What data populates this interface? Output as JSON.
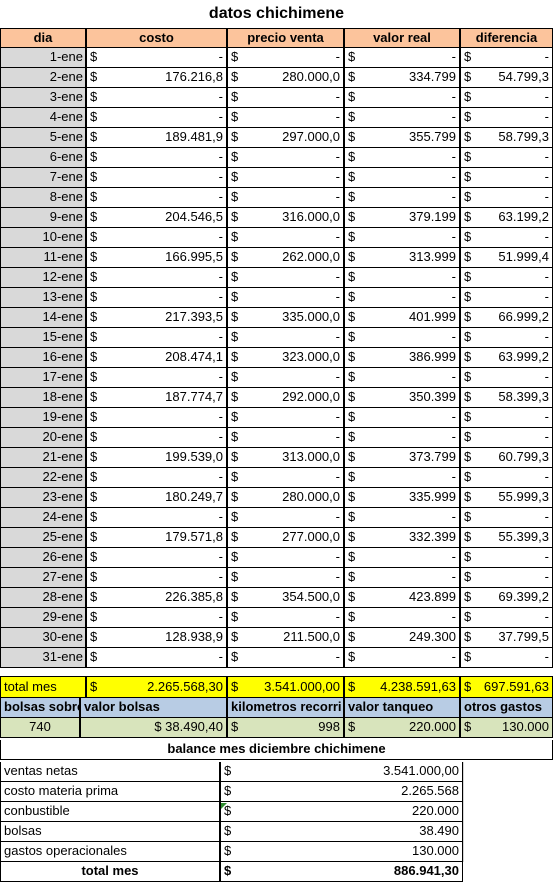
{
  "sheet_title": "datos chichimene",
  "headers": {
    "dia": "dia",
    "costo": "costo",
    "precio_venta": "precio venta",
    "valor_real": "valor real",
    "diferencia": "diferencia"
  },
  "currency_symbol": "$",
  "empty_value": "-",
  "rows": [
    {
      "dia": "1-ene",
      "costo": "-",
      "precio": "-",
      "real": "-",
      "dif": "-"
    },
    {
      "dia": "2-ene",
      "costo": "176.216,8",
      "precio": "280.000,0",
      "real": "334.799",
      "dif": "54.799,3"
    },
    {
      "dia": "3-ene",
      "costo": "-",
      "precio": "-",
      "real": "-",
      "dif": "-"
    },
    {
      "dia": "4-ene",
      "costo": "-",
      "precio": "-",
      "real": "-",
      "dif": "-"
    },
    {
      "dia": "5-ene",
      "costo": "189.481,9",
      "precio": "297.000,0",
      "real": "355.799",
      "dif": "58.799,3"
    },
    {
      "dia": "6-ene",
      "costo": "-",
      "precio": "-",
      "real": "-",
      "dif": "-"
    },
    {
      "dia": "7-ene",
      "costo": "-",
      "precio": "-",
      "real": "-",
      "dif": "-"
    },
    {
      "dia": "8-ene",
      "costo": "-",
      "precio": "-",
      "real": "-",
      "dif": "-"
    },
    {
      "dia": "9-ene",
      "costo": "204.546,5",
      "precio": "316.000,0",
      "real": "379.199",
      "dif": "63.199,2"
    },
    {
      "dia": "10-ene",
      "costo": "-",
      "precio": "-",
      "real": "-",
      "dif": "-"
    },
    {
      "dia": "11-ene",
      "costo": "166.995,5",
      "precio": "262.000,0",
      "real": "313.999",
      "dif": "51.999,4"
    },
    {
      "dia": "12-ene",
      "costo": "-",
      "precio": "-",
      "real": "-",
      "dif": "-"
    },
    {
      "dia": "13-ene",
      "costo": "-",
      "precio": "-",
      "real": "-",
      "dif": "-"
    },
    {
      "dia": "14-ene",
      "costo": "217.393,5",
      "precio": "335.000,0",
      "real": "401.999",
      "dif": "66.999,2"
    },
    {
      "dia": "15-ene",
      "costo": "-",
      "precio": "-",
      "real": "-",
      "dif": "-"
    },
    {
      "dia": "16-ene",
      "costo": "208.474,1",
      "precio": "323.000,0",
      "real": "386.999",
      "dif": "63.999,2"
    },
    {
      "dia": "17-ene",
      "costo": "-",
      "precio": "-",
      "real": "-",
      "dif": "-"
    },
    {
      "dia": "18-ene",
      "costo": "187.774,7",
      "precio": "292.000,0",
      "real": "350.399",
      "dif": "58.399,3"
    },
    {
      "dia": "19-ene",
      "costo": "-",
      "precio": "-",
      "real": "-",
      "dif": "-"
    },
    {
      "dia": "20-ene",
      "costo": "-",
      "precio": "-",
      "real": "-",
      "dif": "-"
    },
    {
      "dia": "21-ene",
      "costo": "199.539,0",
      "precio": "313.000,0",
      "real": "373.799",
      "dif": "60.799,3"
    },
    {
      "dia": "22-ene",
      "costo": "-",
      "precio": "-",
      "real": "-",
      "dif": "-"
    },
    {
      "dia": "23-ene",
      "costo": "180.249,7",
      "precio": "280.000,0",
      "real": "335.999",
      "dif": "55.999,3"
    },
    {
      "dia": "24-ene",
      "costo": "-",
      "precio": "-",
      "real": "-",
      "dif": "-"
    },
    {
      "dia": "25-ene",
      "costo": "179.571,8",
      "precio": "277.000,0",
      "real": "332.399",
      "dif": "55.399,3"
    },
    {
      "dia": "26-ene",
      "costo": "-",
      "precio": "-",
      "real": "-",
      "dif": "-"
    },
    {
      "dia": "27-ene",
      "costo": "-",
      "precio": "-",
      "real": "-",
      "dif": "-"
    },
    {
      "dia": "28-ene",
      "costo": "226.385,8",
      "precio": "354.500,0",
      "real": "423.899",
      "dif": "69.399,2"
    },
    {
      "dia": "29-ene",
      "costo": "-",
      "precio": "-",
      "real": "-",
      "dif": "-"
    },
    {
      "dia": "30-ene",
      "costo": "128.938,9",
      "precio": "211.500,0",
      "real": "249.300",
      "dif": "37.799,5"
    },
    {
      "dia": "31-ene",
      "costo": "-",
      "precio": "-",
      "real": "-",
      "dif": "-"
    }
  ],
  "totals": {
    "label": "total mes",
    "costo": "2.265.568,30",
    "precio": "3.541.000,00",
    "real": "4.238.591,63",
    "dif": "697.591,63"
  },
  "extras_headers": {
    "bolsas": "bolsas sobre",
    "valor_bolsas": "valor bolsas",
    "km": "kilometros recorri",
    "tanqueo": "valor tanqueo",
    "otros": "otros gastos"
  },
  "extras_values": {
    "bolsas": "740",
    "valor_bolsas": "$ 38.490,40",
    "km": "998",
    "tanqueo": "220.000",
    "otros": "130.000"
  },
  "balance": {
    "title": "balance mes diciembre chichimene",
    "items": [
      {
        "label": "ventas netas",
        "value": "3.541.000,00"
      },
      {
        "label": "costo materia prima",
        "value": "2.265.568"
      },
      {
        "label": "conbustible",
        "value": "220.000"
      },
      {
        "label": "bolsas",
        "value": "38.490"
      },
      {
        "label": "gastos operacionales",
        "value": "130.000"
      }
    ],
    "total_label": "total mes",
    "total_value": "886.941,30"
  },
  "colors": {
    "header_bg": "#fcc49c",
    "day_bg": "#d9d9d9",
    "total_bg": "#ffff00",
    "extras_header_bg": "#b8cce4",
    "extras_value_bg": "#d8e4bc"
  }
}
